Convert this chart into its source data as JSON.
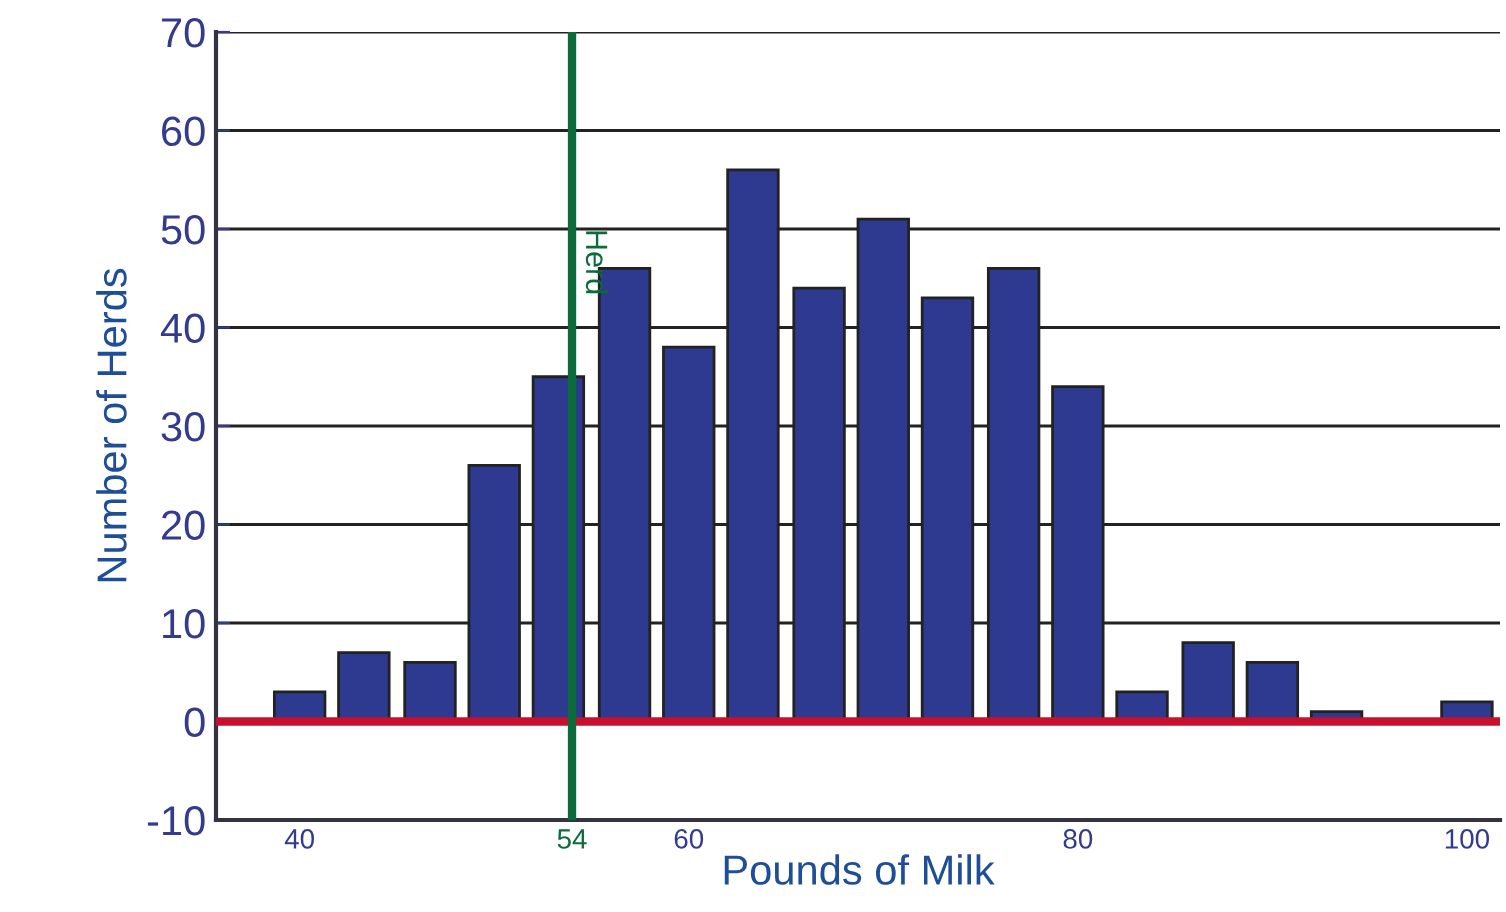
{
  "chart_data": {
    "type": "bar",
    "xlabel": "Pounds of Milk",
    "ylabel": "Number of Herds",
    "x": [
      40,
      43.3,
      46.7,
      50,
      53.3,
      56.7,
      60,
      63.3,
      66.7,
      70,
      73.3,
      76.7,
      80,
      83.3,
      86.7,
      90,
      93.3,
      96.7,
      100
    ],
    "values": [
      3,
      7,
      6,
      26,
      35,
      46,
      38,
      56,
      44,
      51,
      43,
      46,
      34,
      3,
      8,
      6,
      1,
      null,
      2
    ],
    "color": "#2d3a8f",
    "xlim": [
      35.7,
      101.7
    ],
    "xticks": [
      40,
      54,
      60,
      80,
      100
    ],
    "ylim": [
      -10,
      70
    ],
    "yticks": [
      -10,
      0,
      10,
      20,
      30,
      40,
      50,
      60,
      70
    ],
    "grid": "y",
    "ref_lines": [
      {
        "axis": "x",
        "value": 54,
        "label": "Herd",
        "color": "#0b6b3a"
      },
      {
        "axis": "y",
        "value": 0,
        "label": null,
        "color": "#c8102e"
      }
    ]
  }
}
